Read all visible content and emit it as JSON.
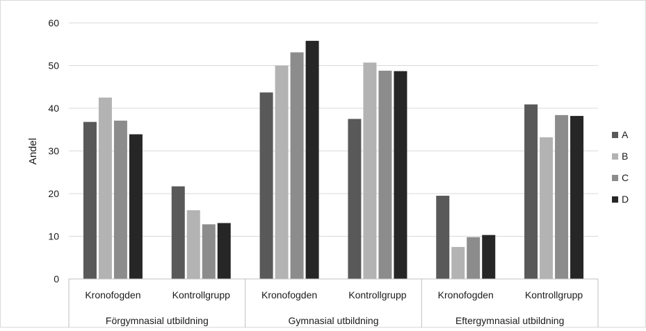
{
  "chart_data": {
    "type": "bar",
    "title": "",
    "xlabel": "",
    "ylabel": "Andel",
    "ylim": [
      0,
      60
    ],
    "yticks": [
      "0",
      "10",
      "20",
      "30",
      "40",
      "50",
      "60"
    ],
    "grid": true,
    "legend_position": "right",
    "groups": [
      {
        "label": "Förgymnasial utbildning",
        "categories": [
          "Kronofogden",
          "Kontrollgrupp"
        ]
      },
      {
        "label": "Gymnasial utbildning",
        "categories": [
          "Kronofogden",
          "Kontrollgrupp"
        ]
      },
      {
        "label": "Eftergymnasial utbildning",
        "categories": [
          "Kronofogden",
          "Kontrollgrupp"
        ]
      }
    ],
    "categories": [
      "Förgymnasial utbildning / Kronofogden",
      "Förgymnasial utbildning / Kontrollgrupp",
      "Gymnasial utbildning / Kronofogden",
      "Gymnasial utbildning / Kontrollgrupp",
      "Eftergymnasial utbildning / Kronofogden",
      "Eftergymnasial utbildning / Kontrollgrupp"
    ],
    "series": [
      {
        "name": "A",
        "color": "#595959",
        "values": [
          36.8,
          21.7,
          43.7,
          37.5,
          19.5,
          40.9
        ]
      },
      {
        "name": "B",
        "color": "#b3b3b3",
        "values": [
          42.5,
          16.1,
          50.0,
          50.7,
          7.5,
          33.2
        ]
      },
      {
        "name": "C",
        "color": "#8c8c8c",
        "values": [
          37.1,
          12.8,
          53.1,
          48.8,
          9.8,
          38.4
        ]
      },
      {
        "name": "D",
        "color": "#262626",
        "values": [
          33.9,
          13.1,
          55.8,
          48.7,
          10.3,
          38.2
        ]
      }
    ]
  }
}
